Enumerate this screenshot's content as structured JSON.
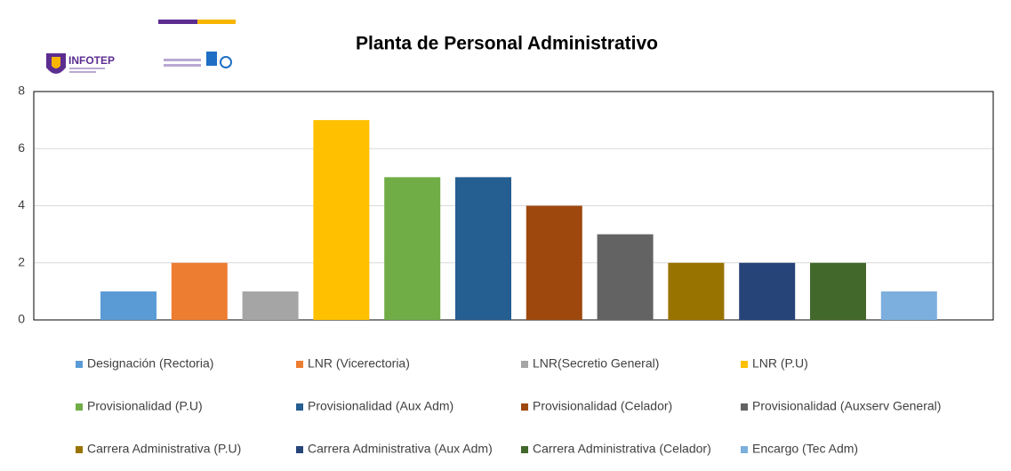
{
  "chart_data": {
    "type": "bar",
    "title": "Planta de Personal Administrativo",
    "logo_text": "INFOTEP",
    "series": [
      {
        "name": "Designación (Rectoria)",
        "color": "#5b9bd5",
        "values": [
          1
        ]
      },
      {
        "name": "LNR (Vicerectoria)",
        "color": "#ed7d31",
        "values": [
          2
        ]
      },
      {
        "name": "LNR(Secretio General)",
        "color": "#a5a5a5",
        "values": [
          1
        ]
      },
      {
        "name": "LNR (P.U)",
        "color": "#ffc000",
        "values": [
          7
        ]
      },
      {
        "name": "Provisionalidad (P.U)",
        "color": "#70ad47",
        "values": [
          5
        ]
      },
      {
        "name": "Provisionalidad (Aux Adm)",
        "color": "#255e91",
        "values": [
          5
        ]
      },
      {
        "name": "Provisionalidad (Celador)",
        "color": "#9e480e",
        "values": [
          4
        ]
      },
      {
        "name": "Provisionalidad (Auxserv General)",
        "color": "#636363",
        "values": [
          3
        ]
      },
      {
        "name": "Carrera Administrativa (P.U)",
        "color": "#997300",
        "values": [
          2
        ]
      },
      {
        "name": "Carrera Administrativa (Aux Adm)",
        "color": "#264478",
        "values": [
          2
        ]
      },
      {
        "name": "Carrera Administrativa (Celador)",
        "color": "#43682b",
        "values": [
          2
        ]
      },
      {
        "name": "Encargo (Tec Adm)",
        "color": "#7cafdd",
        "values": [
          1
        ]
      }
    ],
    "ylim": [
      0,
      8
    ],
    "yticks": [
      0,
      2,
      4,
      6,
      8
    ],
    "grid": true
  }
}
